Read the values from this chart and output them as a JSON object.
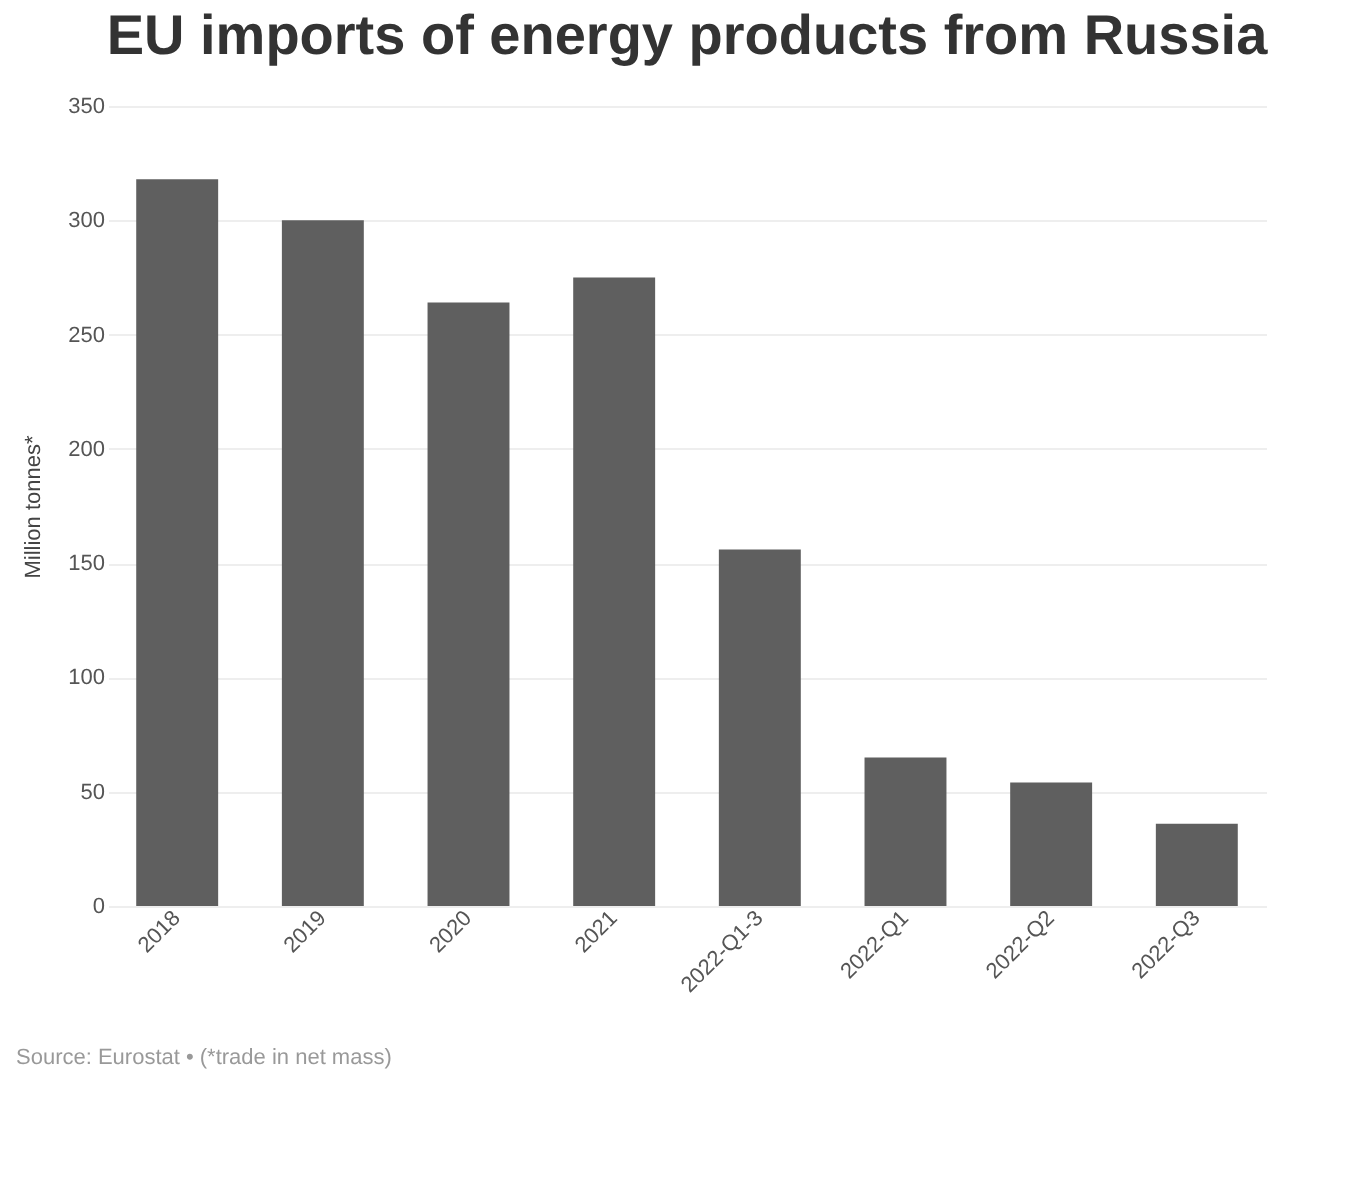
{
  "chart_data": {
    "type": "bar",
    "title": "EU imports of energy products from Russia",
    "ylabel": "Million tonnes*",
    "categories": [
      "2018",
      "2019",
      "2020",
      "2021",
      "2022-Q1-3",
      "2022-Q1",
      "2022-Q2",
      "2022-Q3"
    ],
    "values": [
      318,
      300,
      264,
      275,
      156,
      65,
      54,
      36
    ],
    "color": "#5f5f5f",
    "ylim": [
      0,
      350
    ],
    "yticks": [
      0,
      50,
      100,
      150,
      200,
      250,
      300,
      350
    ],
    "grid": "y",
    "annotations": [
      "Source: Eurostat • (*trade in net mass)"
    ]
  }
}
